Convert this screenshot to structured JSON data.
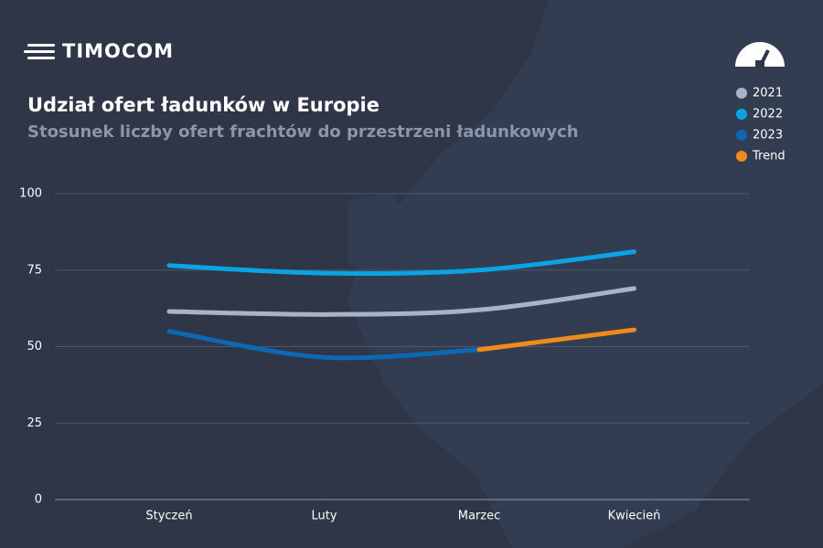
{
  "brand": "TIMOCOM",
  "chart_data": {
    "type": "line",
    "title": "Udział ofert ładunków w Europie",
    "subtitle": "Stosunek liczby ofert frachtów do przestrzeni ładunkowych",
    "categories": [
      "Styczeń",
      "Luty",
      "Marzec",
      "Kwiecień"
    ],
    "series": [
      {
        "name": "2021",
        "color": "#a9b2c6",
        "values": [
          61.5,
          60.5,
          62,
          69
        ]
      },
      {
        "name": "2022",
        "color": "#0aa3e4",
        "values": [
          76.5,
          74,
          75,
          81
        ]
      },
      {
        "name": "2023",
        "color": "#0c68b5",
        "values": [
          55,
          46.5,
          49,
          null
        ]
      },
      {
        "name": "Trend",
        "color": "#f18a1d",
        "values": [
          null,
          null,
          49,
          55.5
        ]
      }
    ],
    "ylim": [
      0,
      100
    ],
    "yticks": [
      0,
      25,
      50,
      75,
      100
    ],
    "grid": true,
    "legend": "top-right"
  }
}
